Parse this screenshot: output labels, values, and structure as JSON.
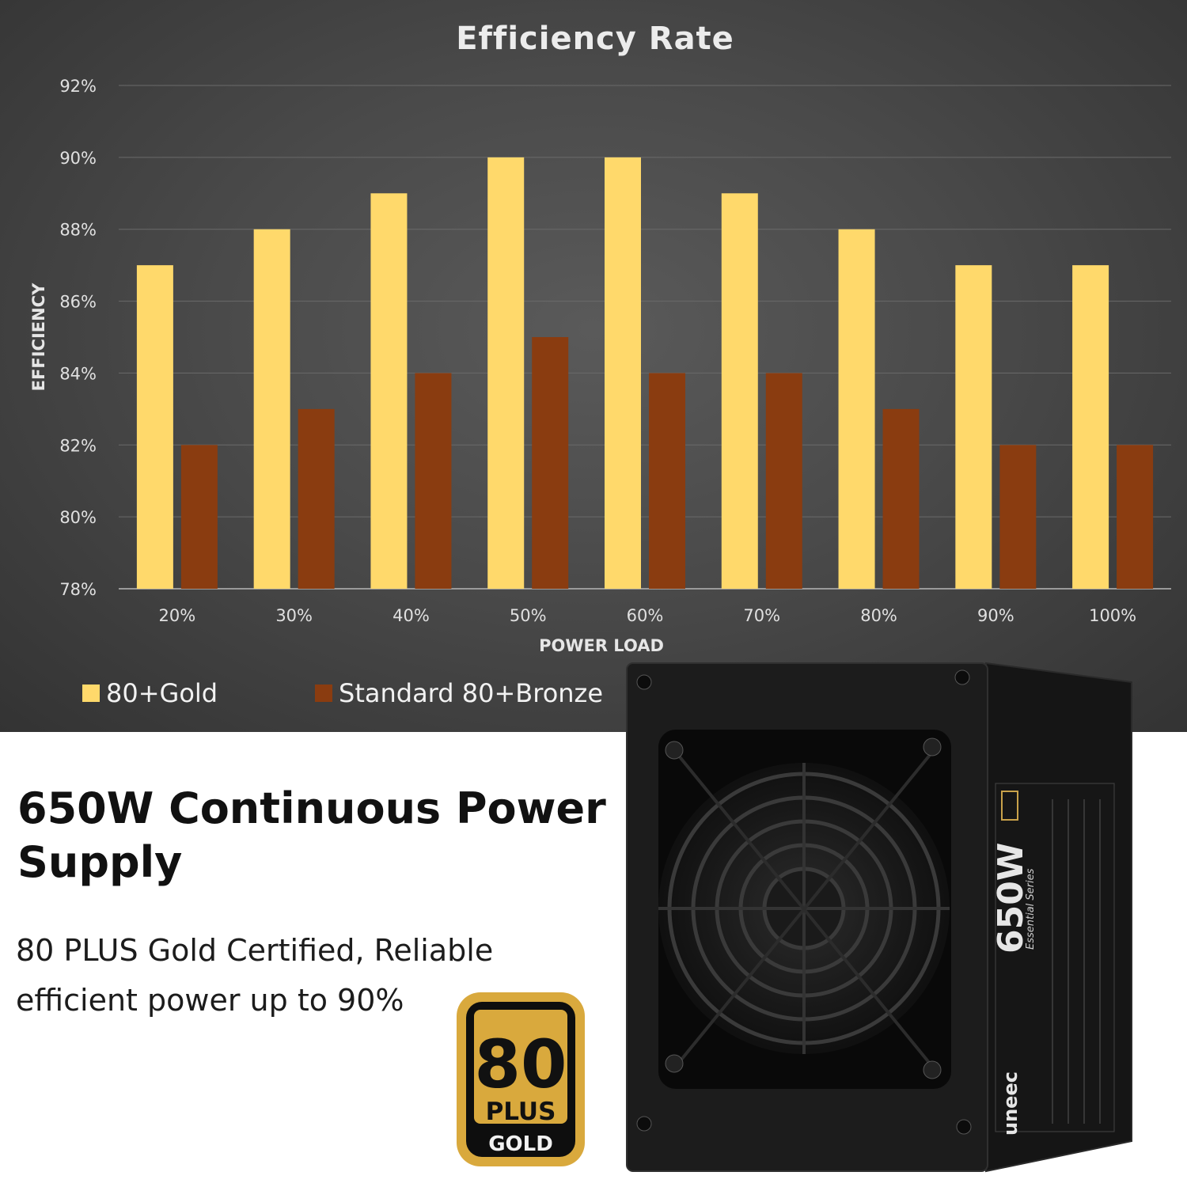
{
  "chart_data": {
    "type": "bar",
    "title": "Efficiency Rate",
    "xlabel": "POWER LOAD",
    "ylabel": "EFFICIENCY",
    "categories": [
      "20%",
      "30%",
      "40%",
      "50%",
      "60%",
      "70%",
      "80%",
      "90%",
      "100%"
    ],
    "series": [
      {
        "name": "80+Gold",
        "color": "#ffd96b",
        "values": [
          87,
          88,
          89,
          90,
          90,
          89,
          88,
          87,
          87
        ]
      },
      {
        "name": "Standard 80+Bronze",
        "color": "#8a3c10",
        "values": [
          82,
          83,
          84,
          85,
          84,
          84,
          83,
          82,
          82
        ]
      }
    ],
    "ylim": [
      78,
      92
    ],
    "yticks": [
      92,
      90,
      88,
      86,
      84,
      82,
      80,
      78
    ],
    "ytick_labels": [
      "92%",
      "90%",
      "88%",
      "86%",
      "84%",
      "82%",
      "80%",
      "78%"
    ],
    "grid": true,
    "legend_position": "bottom-left"
  },
  "headline": "650W Continuous Power Supply",
  "subtext": "80 PLUS Gold Certified, Reliable efficient power up to 90%",
  "badge": {
    "number": "80",
    "plus": "PLUS",
    "level": "GOLD"
  },
  "product_label": {
    "wattage": "650W",
    "series": "Essential Series",
    "brand": "uneec"
  },
  "colors": {
    "panel": "#4a4a4a",
    "gold": "#ffd96b",
    "bronze": "#8a3c10",
    "badge_gold": "#d9a93d"
  }
}
